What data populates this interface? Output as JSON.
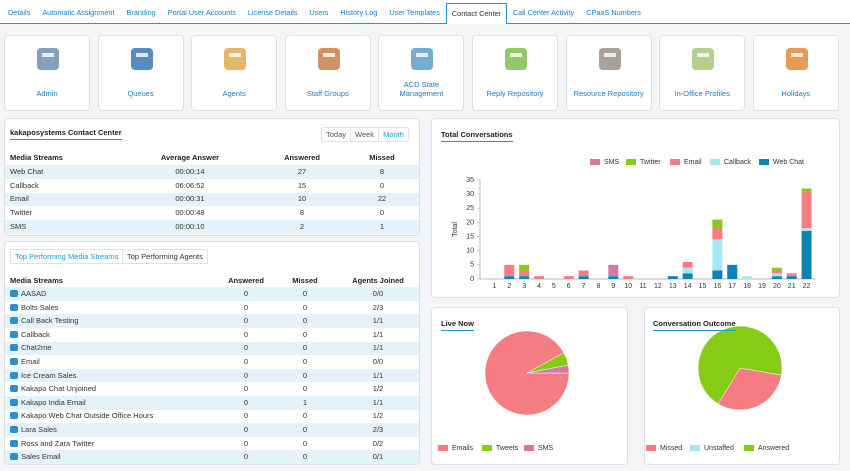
{
  "tabs": [
    "Details",
    "Automatic Assignment",
    "Branding",
    "Portal User Accounts",
    "License Details",
    "Users",
    "History Log",
    "User Templates",
    "Contact Center",
    "Call Center Activity",
    "CPaaS Numbers"
  ],
  "tiles": [
    "Admin",
    "Queues",
    "Agents",
    "Staff Groups",
    "ACD State Management",
    "Reply Repository",
    "Resource Repository",
    "In-Office Profiles",
    "Holidays"
  ],
  "contact_center": {
    "title": "kakaposystems Contact Center",
    "periods": [
      "Today",
      "Week",
      "Month"
    ],
    "columns": [
      "Media Streams",
      "Average Answer",
      "Answered",
      "Missed"
    ],
    "rows": [
      [
        "Web Chat",
        "00:00:14",
        27,
        8
      ],
      [
        "Callback",
        "06:06:52",
        15,
        0
      ],
      [
        "Email",
        "00:00:31",
        10,
        22
      ],
      [
        "Twitter",
        "00:00:48",
        8,
        0
      ],
      [
        "SMS",
        "00:00:10",
        2,
        1
      ]
    ]
  },
  "performance": {
    "tabs": [
      "Top Performing Media Streams",
      "Top Performing Agents"
    ],
    "columns": [
      "Media Streams",
      "Answered",
      "Missed",
      "Agents Joined"
    ],
    "rows": [
      [
        "AASAD",
        0,
        0,
        "0/0"
      ],
      [
        "Bolts Sales",
        0,
        0,
        "2/3"
      ],
      [
        "Call Back Testing",
        0,
        0,
        "1/1"
      ],
      [
        "Callback",
        0,
        0,
        "1/1"
      ],
      [
        "Chat2me",
        0,
        0,
        "1/1"
      ],
      [
        "Email",
        0,
        0,
        "0/0"
      ],
      [
        "Ice Cream Sales",
        0,
        0,
        "1/1"
      ],
      [
        "Kakapo Chat Unjoined",
        0,
        0,
        "1/2"
      ],
      [
        "Kakapo India Email",
        0,
        1,
        "1/1"
      ],
      [
        "Kakapo Web Chat Outside Office Hours",
        0,
        0,
        "1/2"
      ],
      [
        "Lara Sales",
        0,
        0,
        "2/3"
      ],
      [
        "Ross and Zara Twitter",
        0,
        0,
        "0/2"
      ],
      [
        "Sales Email",
        0,
        0,
        "0/1"
      ]
    ]
  },
  "chart_data": [
    {
      "type": "bar",
      "stacked": true,
      "title": "Total Conversations",
      "y_label": "Total",
      "categories": [
        "1",
        "2",
        "3",
        "4",
        "5",
        "6",
        "7",
        "8",
        "9",
        "10",
        "11",
        "12",
        "13",
        "14",
        "15",
        "16",
        "17",
        "18",
        "19",
        "20",
        "21",
        "22"
      ],
      "ylim": [
        0,
        35
      ],
      "yticks": [
        0,
        5,
        10,
        15,
        20,
        25,
        30,
        35
      ],
      "grid": false,
      "series": [
        {
          "name": "SMS",
          "color": "#d27aa6",
          "values": [
            0,
            0,
            0,
            0,
            0,
            0,
            0,
            0,
            4,
            0,
            0,
            0,
            0,
            0,
            0,
            0,
            0,
            0,
            0,
            0,
            0,
            0
          ]
        },
        {
          "name": "Twitter",
          "color": "#86cc14",
          "values": [
            0,
            0,
            2,
            0,
            0,
            0,
            0,
            0,
            0,
            0,
            0,
            0,
            0,
            0,
            0,
            3,
            0,
            0,
            0,
            1,
            0,
            1
          ]
        },
        {
          "name": "Email",
          "color": "#f57c82",
          "values": [
            0,
            4,
            2,
            1,
            0,
            1,
            2,
            0,
            0,
            1,
            0,
            0,
            0,
            2,
            0,
            4,
            0,
            0,
            0,
            1,
            1,
            13
          ]
        },
        {
          "name": "Callback",
          "color": "#a8e6f4",
          "values": [
            0,
            0,
            0,
            0,
            0,
            0,
            0,
            0,
            0,
            0,
            0,
            0,
            0,
            2,
            0,
            11,
            0,
            1,
            0,
            1,
            0,
            1
          ]
        },
        {
          "name": "Web Chat",
          "color": "#0b83b5",
          "values": [
            0,
            1,
            1,
            0,
            0,
            0,
            1,
            0,
            1,
            0,
            0,
            0,
            1,
            2,
            0,
            3,
            5,
            0,
            0,
            1,
            1,
            17
          ]
        }
      ]
    },
    {
      "type": "pie",
      "title": "Live Now",
      "categories": [
        "Emails",
        "Tweets",
        "SMS"
      ],
      "values": [
        92,
        5,
        3
      ],
      "colors": [
        "#f57c82",
        "#86cc14",
        "#d27aa6"
      ]
    },
    {
      "type": "pie",
      "title": "Conversation Outcome",
      "categories": [
        "Missed",
        "Unstaffed",
        "Answered"
      ],
      "values": [
        31,
        0,
        69
      ],
      "colors": [
        "#f57c82",
        "#a8e6f4",
        "#86cc14"
      ]
    }
  ]
}
